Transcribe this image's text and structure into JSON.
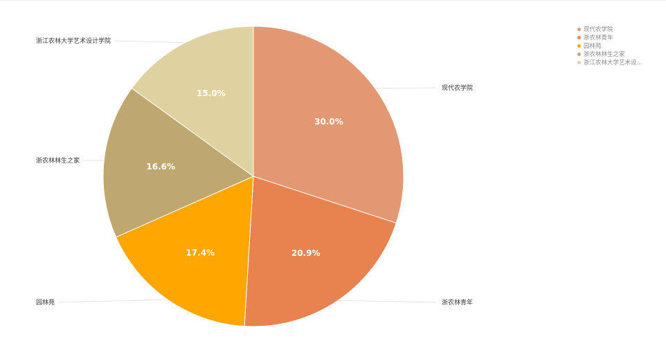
{
  "chart_data": {
    "type": "pie",
    "categories": [
      "现代农学院",
      "浙农林青年",
      "园林苑",
      "浙农林林生之家",
      "浙江农林大学艺术设计学院"
    ],
    "values": [
      30.0,
      20.9,
      17.4,
      16.6,
      15.0
    ],
    "value_labels": [
      "30.0%",
      "20.9%",
      "17.4%",
      "16.6%",
      "15.0%"
    ],
    "colors": [
      "#e39874",
      "#e8834f",
      "#ffa600",
      "#bfa770",
      "#e0d1a0"
    ],
    "legend": {
      "placement": "top-right",
      "items": [
        "现代农学院",
        "浙农林青年",
        "园林苑",
        "浙农林林生之家",
        "浙江农林大学艺术设..."
      ]
    },
    "start_angle": "12 o'clock",
    "direction": "clockwise"
  }
}
